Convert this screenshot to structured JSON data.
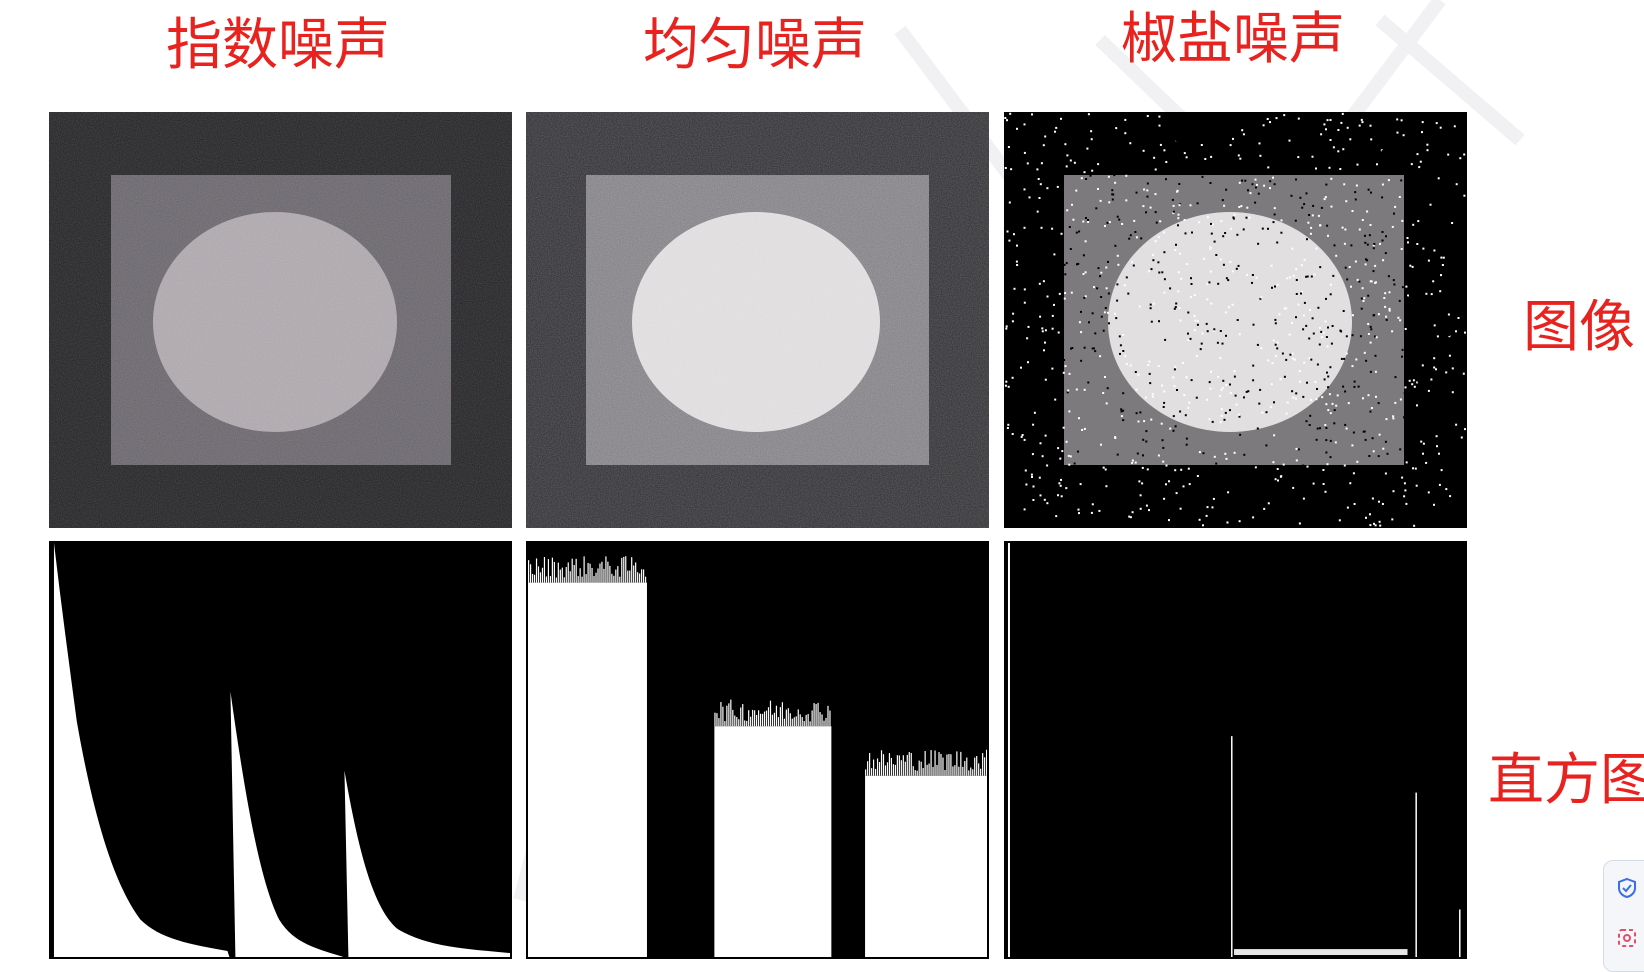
{
  "titles": {
    "exponential": "指数噪声",
    "uniform": "均匀噪声",
    "salt_pepper": "椒盐噪声"
  },
  "row_labels": {
    "image": "图像",
    "histogram": "直方图"
  },
  "colors": {
    "title_red": "#e8231f",
    "panel_black": "#000000",
    "widget_blue": "#3a6fe8",
    "widget_red": "#e0506a"
  },
  "icons": {
    "widget_top": "shield-check-icon",
    "widget_bottom": "screenshot-icon"
  }
}
